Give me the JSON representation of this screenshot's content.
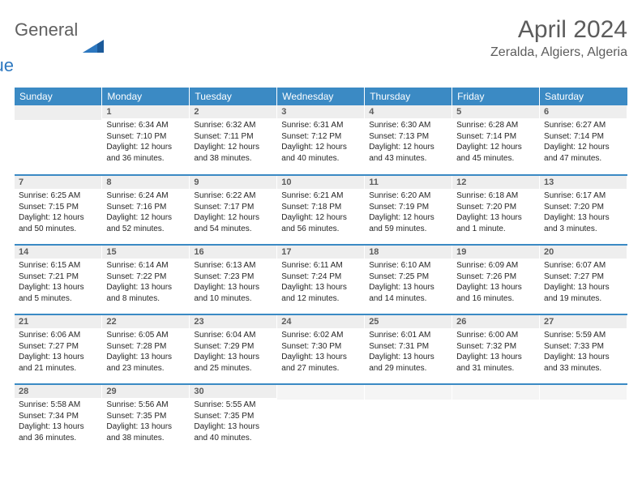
{
  "brand": {
    "word1": "General",
    "word2": "Blue"
  },
  "title": "April 2024",
  "location": "Zeralda, Algiers, Algeria",
  "colors": {
    "header_bg": "#3b8ac4",
    "header_text": "#ffffff",
    "day_bar_bg": "#eeeeee",
    "border": "#3b8ac4",
    "text": "#262626",
    "muted": "#5c5c5c"
  },
  "weekdays": [
    "Sunday",
    "Monday",
    "Tuesday",
    "Wednesday",
    "Thursday",
    "Friday",
    "Saturday"
  ],
  "weeks": [
    [
      null,
      {
        "n": "1",
        "sunrise": "Sunrise: 6:34 AM",
        "sunset": "Sunset: 7:10 PM",
        "day1": "Daylight: 12 hours",
        "day2": "and 36 minutes."
      },
      {
        "n": "2",
        "sunrise": "Sunrise: 6:32 AM",
        "sunset": "Sunset: 7:11 PM",
        "day1": "Daylight: 12 hours",
        "day2": "and 38 minutes."
      },
      {
        "n": "3",
        "sunrise": "Sunrise: 6:31 AM",
        "sunset": "Sunset: 7:12 PM",
        "day1": "Daylight: 12 hours",
        "day2": "and 40 minutes."
      },
      {
        "n": "4",
        "sunrise": "Sunrise: 6:30 AM",
        "sunset": "Sunset: 7:13 PM",
        "day1": "Daylight: 12 hours",
        "day2": "and 43 minutes."
      },
      {
        "n": "5",
        "sunrise": "Sunrise: 6:28 AM",
        "sunset": "Sunset: 7:14 PM",
        "day1": "Daylight: 12 hours",
        "day2": "and 45 minutes."
      },
      {
        "n": "6",
        "sunrise": "Sunrise: 6:27 AM",
        "sunset": "Sunset: 7:14 PM",
        "day1": "Daylight: 12 hours",
        "day2": "and 47 minutes."
      }
    ],
    [
      {
        "n": "7",
        "sunrise": "Sunrise: 6:25 AM",
        "sunset": "Sunset: 7:15 PM",
        "day1": "Daylight: 12 hours",
        "day2": "and 50 minutes."
      },
      {
        "n": "8",
        "sunrise": "Sunrise: 6:24 AM",
        "sunset": "Sunset: 7:16 PM",
        "day1": "Daylight: 12 hours",
        "day2": "and 52 minutes."
      },
      {
        "n": "9",
        "sunrise": "Sunrise: 6:22 AM",
        "sunset": "Sunset: 7:17 PM",
        "day1": "Daylight: 12 hours",
        "day2": "and 54 minutes."
      },
      {
        "n": "10",
        "sunrise": "Sunrise: 6:21 AM",
        "sunset": "Sunset: 7:18 PM",
        "day1": "Daylight: 12 hours",
        "day2": "and 56 minutes."
      },
      {
        "n": "11",
        "sunrise": "Sunrise: 6:20 AM",
        "sunset": "Sunset: 7:19 PM",
        "day1": "Daylight: 12 hours",
        "day2": "and 59 minutes."
      },
      {
        "n": "12",
        "sunrise": "Sunrise: 6:18 AM",
        "sunset": "Sunset: 7:20 PM",
        "day1": "Daylight: 13 hours",
        "day2": "and 1 minute."
      },
      {
        "n": "13",
        "sunrise": "Sunrise: 6:17 AM",
        "sunset": "Sunset: 7:20 PM",
        "day1": "Daylight: 13 hours",
        "day2": "and 3 minutes."
      }
    ],
    [
      {
        "n": "14",
        "sunrise": "Sunrise: 6:15 AM",
        "sunset": "Sunset: 7:21 PM",
        "day1": "Daylight: 13 hours",
        "day2": "and 5 minutes."
      },
      {
        "n": "15",
        "sunrise": "Sunrise: 6:14 AM",
        "sunset": "Sunset: 7:22 PM",
        "day1": "Daylight: 13 hours",
        "day2": "and 8 minutes."
      },
      {
        "n": "16",
        "sunrise": "Sunrise: 6:13 AM",
        "sunset": "Sunset: 7:23 PM",
        "day1": "Daylight: 13 hours",
        "day2": "and 10 minutes."
      },
      {
        "n": "17",
        "sunrise": "Sunrise: 6:11 AM",
        "sunset": "Sunset: 7:24 PM",
        "day1": "Daylight: 13 hours",
        "day2": "and 12 minutes."
      },
      {
        "n": "18",
        "sunrise": "Sunrise: 6:10 AM",
        "sunset": "Sunset: 7:25 PM",
        "day1": "Daylight: 13 hours",
        "day2": "and 14 minutes."
      },
      {
        "n": "19",
        "sunrise": "Sunrise: 6:09 AM",
        "sunset": "Sunset: 7:26 PM",
        "day1": "Daylight: 13 hours",
        "day2": "and 16 minutes."
      },
      {
        "n": "20",
        "sunrise": "Sunrise: 6:07 AM",
        "sunset": "Sunset: 7:27 PM",
        "day1": "Daylight: 13 hours",
        "day2": "and 19 minutes."
      }
    ],
    [
      {
        "n": "21",
        "sunrise": "Sunrise: 6:06 AM",
        "sunset": "Sunset: 7:27 PM",
        "day1": "Daylight: 13 hours",
        "day2": "and 21 minutes."
      },
      {
        "n": "22",
        "sunrise": "Sunrise: 6:05 AM",
        "sunset": "Sunset: 7:28 PM",
        "day1": "Daylight: 13 hours",
        "day2": "and 23 minutes."
      },
      {
        "n": "23",
        "sunrise": "Sunrise: 6:04 AM",
        "sunset": "Sunset: 7:29 PM",
        "day1": "Daylight: 13 hours",
        "day2": "and 25 minutes."
      },
      {
        "n": "24",
        "sunrise": "Sunrise: 6:02 AM",
        "sunset": "Sunset: 7:30 PM",
        "day1": "Daylight: 13 hours",
        "day2": "and 27 minutes."
      },
      {
        "n": "25",
        "sunrise": "Sunrise: 6:01 AM",
        "sunset": "Sunset: 7:31 PM",
        "day1": "Daylight: 13 hours",
        "day2": "and 29 minutes."
      },
      {
        "n": "26",
        "sunrise": "Sunrise: 6:00 AM",
        "sunset": "Sunset: 7:32 PM",
        "day1": "Daylight: 13 hours",
        "day2": "and 31 minutes."
      },
      {
        "n": "27",
        "sunrise": "Sunrise: 5:59 AM",
        "sunset": "Sunset: 7:33 PM",
        "day1": "Daylight: 13 hours",
        "day2": "and 33 minutes."
      }
    ],
    [
      {
        "n": "28",
        "sunrise": "Sunrise: 5:58 AM",
        "sunset": "Sunset: 7:34 PM",
        "day1": "Daylight: 13 hours",
        "day2": "and 36 minutes."
      },
      {
        "n": "29",
        "sunrise": "Sunrise: 5:56 AM",
        "sunset": "Sunset: 7:35 PM",
        "day1": "Daylight: 13 hours",
        "day2": "and 38 minutes."
      },
      {
        "n": "30",
        "sunrise": "Sunrise: 5:55 AM",
        "sunset": "Sunset: 7:35 PM",
        "day1": "Daylight: 13 hours",
        "day2": "and 40 minutes."
      },
      null,
      null,
      null,
      null
    ]
  ]
}
